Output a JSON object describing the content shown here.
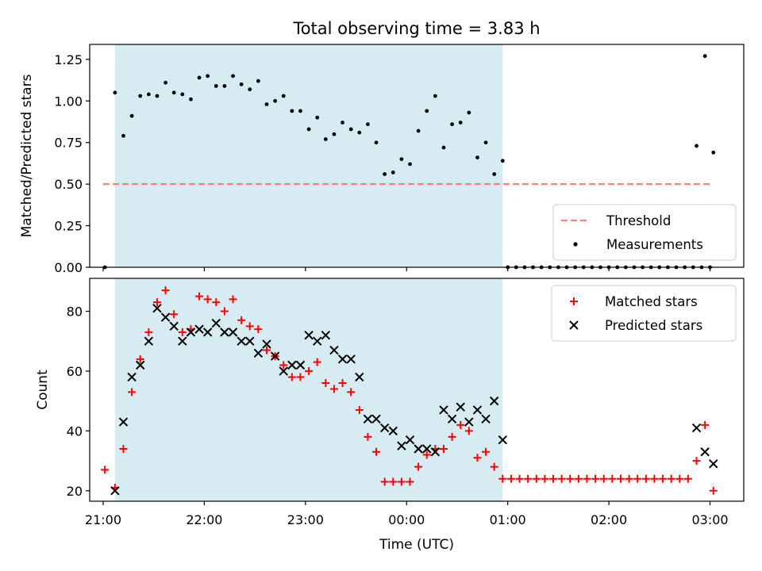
{
  "chart_data": {
    "type": "scatter",
    "title": "Total observing time = 3.83 h",
    "shaded_interval": [
      "21:07",
      "00:57"
    ],
    "x_tick_labels": [
      "21:00",
      "22:00",
      "23:00",
      "00:00",
      "01:00",
      "02:00",
      "03:00"
    ],
    "xlabel": "Time (UTC)",
    "x_time_range": [
      "20:52",
      "03:20"
    ],
    "panels": [
      {
        "ylabel": "Matched/Predicted stars",
        "ylim": [
          0,
          1.34
        ],
        "y_ticks": [
          0.0,
          0.25,
          0.5,
          0.75,
          1.0,
          1.25
        ],
        "y_tick_labels": [
          "0.00",
          "0.25",
          "0.50",
          "0.75",
          "1.00",
          "1.25"
        ],
        "legend": "bottom-right",
        "threshold": {
          "name": "Threshold",
          "y": 0.5,
          "x_range": [
            "21:00",
            "03:00"
          ],
          "color": "#ff7f7f"
        },
        "series": [
          {
            "name": "Measurements",
            "color": "#000000",
            "marker": "dot",
            "x": [
              "21:01",
              "21:07",
              "21:12",
              "21:17",
              "21:22",
              "21:27",
              "21:32",
              "21:37",
              "21:42",
              "21:47",
              "21:52",
              "21:57",
              "22:02",
              "22:07",
              "22:12",
              "22:17",
              "22:22",
              "22:27",
              "22:32",
              "22:37",
              "22:42",
              "22:47",
              "22:52",
              "22:57",
              "23:02",
              "23:07",
              "23:12",
              "23:17",
              "23:22",
              "23:27",
              "23:32",
              "23:37",
              "23:42",
              "23:47",
              "23:52",
              "23:57",
              "00:02",
              "00:07",
              "00:12",
              "00:17",
              "00:22",
              "00:27",
              "00:32",
              "00:37",
              "00:42",
              "00:47",
              "00:52",
              "00:57",
              "01:00",
              "01:05",
              "01:10",
              "01:15",
              "01:20",
              "01:25",
              "01:30",
              "01:35",
              "01:40",
              "01:45",
              "01:50",
              "01:55",
              "02:00",
              "02:05",
              "02:10",
              "02:15",
              "02:20",
              "02:25",
              "02:30",
              "02:35",
              "02:40",
              "02:45",
              "02:50",
              "02:55",
              "03:00",
              "02:52",
              "02:57",
              "03:02"
            ],
            "y": [
              0.0,
              1.05,
              0.79,
              0.91,
              1.03,
              1.04,
              1.03,
              1.11,
              1.05,
              1.04,
              1.01,
              1.14,
              1.15,
              1.09,
              1.09,
              1.15,
              1.1,
              1.07,
              1.12,
              0.98,
              1.0,
              1.03,
              0.94,
              0.94,
              0.83,
              0.9,
              0.77,
              0.8,
              0.87,
              0.83,
              0.81,
              0.86,
              0.75,
              0.56,
              0.57,
              0.65,
              0.62,
              0.82,
              0.94,
              1.03,
              0.72,
              0.86,
              0.87,
              0.93,
              0.66,
              0.75,
              0.56,
              0.64,
              0.0,
              0.0,
              0.0,
              0.0,
              0.0,
              0.0,
              0.0,
              0.0,
              0.0,
              0.0,
              0.0,
              0.0,
              0.0,
              0.0,
              0.0,
              0.0,
              0.0,
              0.0,
              0.0,
              0.0,
              0.0,
              0.0,
              0.0,
              0.0,
              0.0,
              0.73,
              1.27,
              0.69
            ]
          }
        ]
      },
      {
        "ylabel": "Count",
        "ylim": [
          16.5,
          91
        ],
        "y_ticks": [
          20,
          40,
          60,
          80
        ],
        "y_tick_labels": [
          "20",
          "40",
          "60",
          "80"
        ],
        "legend": "top-right",
        "series": [
          {
            "name": "Matched stars",
            "color": "#ff0000",
            "marker": "plus",
            "x": [
              "21:01",
              "21:07",
              "21:12",
              "21:17",
              "21:22",
              "21:27",
              "21:32",
              "21:37",
              "21:42",
              "21:47",
              "21:52",
              "21:57",
              "22:02",
              "22:07",
              "22:12",
              "22:17",
              "22:22",
              "22:27",
              "22:32",
              "22:37",
              "22:42",
              "22:47",
              "22:52",
              "22:57",
              "23:02",
              "23:07",
              "23:12",
              "23:17",
              "23:22",
              "23:27",
              "23:32",
              "23:37",
              "23:42",
              "23:47",
              "23:52",
              "23:57",
              "00:02",
              "00:07",
              "00:12",
              "00:17",
              "00:22",
              "00:27",
              "00:32",
              "00:37",
              "00:42",
              "00:47",
              "00:52",
              "00:57",
              "01:02",
              "01:07",
              "01:12",
              "01:17",
              "01:22",
              "01:27",
              "01:32",
              "01:37",
              "01:42",
              "01:47",
              "01:52",
              "01:57",
              "02:02",
              "02:07",
              "02:12",
              "02:17",
              "02:22",
              "02:27",
              "02:32",
              "02:37",
              "02:42",
              "02:47",
              "02:52",
              "02:57",
              "03:02"
            ],
            "y": [
              27,
              21,
              34,
              53,
              64,
              73,
              83,
              87,
              79,
              73,
              74,
              85,
              84,
              83,
              80,
              84,
              77,
              75,
              74,
              67,
              65,
              62,
              58,
              58,
              60,
              63,
              56,
              54,
              56,
              53,
              47,
              38,
              33,
              23,
              23,
              23,
              23,
              28,
              32,
              34,
              34,
              38,
              42,
              40,
              31,
              33,
              28,
              24,
              24,
              24,
              24,
              24,
              24,
              24,
              24,
              24,
              24,
              24,
              24,
              24,
              24,
              24,
              24,
              24,
              24,
              24,
              24,
              24,
              24,
              24,
              30,
              42,
              20
            ]
          },
          {
            "name": "Predicted stars",
            "color": "#000000",
            "marker": "x",
            "x": [
              "21:07",
              "21:12",
              "21:17",
              "21:22",
              "21:27",
              "21:32",
              "21:37",
              "21:42",
              "21:47",
              "21:52",
              "21:57",
              "22:02",
              "22:07",
              "22:12",
              "22:17",
              "22:22",
              "22:27",
              "22:32",
              "22:37",
              "22:42",
              "22:47",
              "22:52",
              "22:57",
              "23:02",
              "23:07",
              "23:12",
              "23:17",
              "23:22",
              "23:27",
              "23:32",
              "23:37",
              "23:42",
              "23:47",
              "23:52",
              "23:57",
              "00:02",
              "00:07",
              "00:12",
              "00:17",
              "00:22",
              "00:27",
              "00:32",
              "00:37",
              "00:42",
              "00:47",
              "00:52",
              "00:57",
              "02:52",
              "02:57",
              "03:02"
            ],
            "y": [
              20,
              43,
              58,
              62,
              70,
              81,
              78,
              75,
              70,
              73,
              74,
              73,
              76,
              73,
              73,
              70,
              70,
              66,
              69,
              65,
              60,
              62,
              62,
              72,
              70,
              72,
              67,
              64,
              64,
              58,
              44,
              44,
              41,
              40,
              35,
              37,
              34,
              34,
              33,
              47,
              44,
              48,
              43,
              47,
              44,
              50,
              37,
              41,
              33,
              29
            ]
          }
        ]
      }
    ]
  }
}
